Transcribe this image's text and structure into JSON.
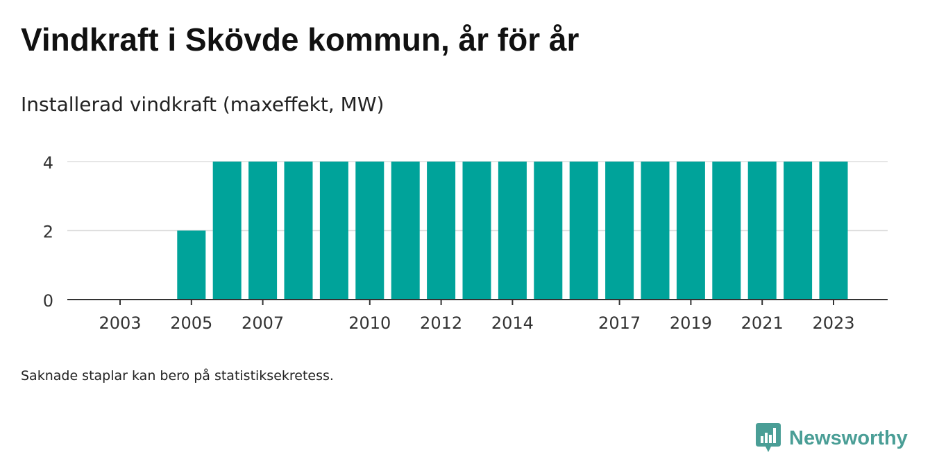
{
  "title": "Vindkraft i Skövde kommun, år för år",
  "subtitle": "Installerad vindkraft (maxeffekt, MW)",
  "note": "Saknade staplar kan bero på statistiksekretess.",
  "brand": {
    "name": "Newsworthy",
    "color": "#4a9e96",
    "icon": "newsworthy-logo-icon"
  },
  "colors": {
    "bar": "#00a39a",
    "grid": "#dddddd",
    "axis": "#333333",
    "tick_text": "#333333"
  },
  "chart_data": {
    "type": "bar",
    "categories": [
      "2003",
      "2004",
      "2005",
      "2006",
      "2007",
      "2008",
      "2009",
      "2010",
      "2011",
      "2012",
      "2013",
      "2014",
      "2015",
      "2016",
      "2017",
      "2018",
      "2019",
      "2020",
      "2021",
      "2022",
      "2023"
    ],
    "values": [
      null,
      null,
      2,
      4,
      4,
      4,
      4,
      4,
      4,
      4,
      4,
      4,
      4,
      4,
      4,
      4,
      4,
      4,
      4,
      4,
      4
    ],
    "x_tick_labels": [
      "2003",
      "2005",
      "2007",
      "2010",
      "2012",
      "2014",
      "2017",
      "2019",
      "2021",
      "2023"
    ],
    "y_ticks": [
      0,
      2,
      4
    ],
    "ylim": [
      0,
      4
    ],
    "grid": true,
    "legend": "none"
  }
}
